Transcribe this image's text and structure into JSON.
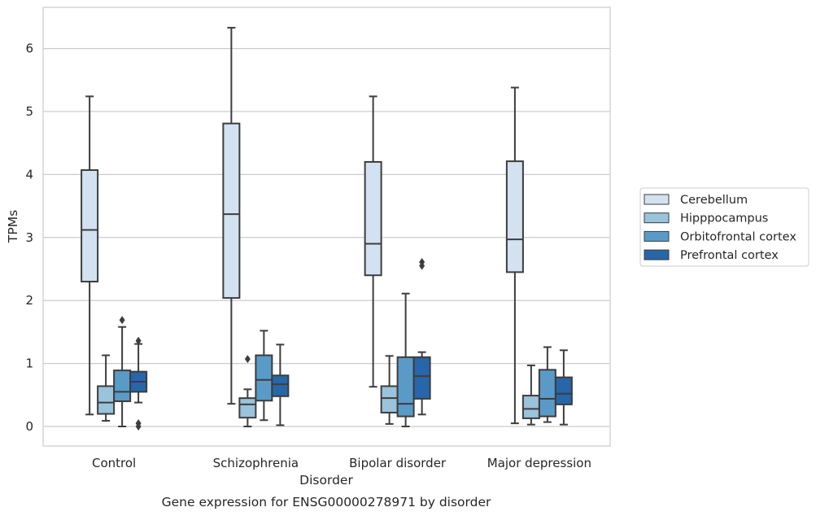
{
  "caption": "Gene expression for ENSG00000278971 by disorder",
  "chart_data": {
    "type": "box",
    "xlabel": "Disorder",
    "ylabel": "TPMs",
    "ylim": [
      -0.3,
      6.65
    ],
    "yticks": [
      0,
      1,
      2,
      3,
      4,
      5,
      6
    ],
    "grid": "horizontal",
    "legend_position": "right",
    "categories": [
      "Control",
      "Schizophrenia",
      "Bipolar disorder",
      "Major depression"
    ],
    "series": [
      {
        "name": "Cerebellum",
        "color": "#d3e2f1",
        "boxes": [
          {
            "min": 0.19,
            "q1": 2.3,
            "median": 3.12,
            "q3": 4.07,
            "max": 5.24,
            "outliers": []
          },
          {
            "min": 0.36,
            "q1": 2.04,
            "median": 3.37,
            "q3": 4.81,
            "max": 6.33,
            "outliers": []
          },
          {
            "min": 0.63,
            "q1": 2.4,
            "median": 2.9,
            "q3": 4.2,
            "max": 5.24,
            "outliers": []
          },
          {
            "min": 0.05,
            "q1": 2.45,
            "median": 2.97,
            "q3": 4.21,
            "max": 5.38,
            "outliers": []
          }
        ]
      },
      {
        "name": "Hipppocampus",
        "color": "#9ac3dc",
        "boxes": [
          {
            "min": 0.09,
            "q1": 0.2,
            "median": 0.38,
            "q3": 0.64,
            "max": 1.13,
            "outliers": []
          },
          {
            "min": 0.0,
            "q1": 0.14,
            "median": 0.35,
            "q3": 0.45,
            "max": 0.59,
            "outliers": [
              1.07
            ]
          },
          {
            "min": 0.04,
            "q1": 0.22,
            "median": 0.45,
            "q3": 0.64,
            "max": 1.12,
            "outliers": []
          },
          {
            "min": 0.03,
            "q1": 0.13,
            "median": 0.28,
            "q3": 0.49,
            "max": 0.97,
            "outliers": []
          }
        ]
      },
      {
        "name": "Orbitofrontal cortex",
        "color": "#5a9ac7",
        "boxes": [
          {
            "min": 0.0,
            "q1": 0.4,
            "median": 0.55,
            "q3": 0.89,
            "max": 1.58,
            "outliers": [
              1.69
            ]
          },
          {
            "min": 0.1,
            "q1": 0.41,
            "median": 0.74,
            "q3": 1.13,
            "max": 1.52,
            "outliers": []
          },
          {
            "min": 0.0,
            "q1": 0.16,
            "median": 0.36,
            "q3": 1.1,
            "max": 2.11,
            "outliers": []
          },
          {
            "min": 0.07,
            "q1": 0.16,
            "median": 0.44,
            "q3": 0.9,
            "max": 1.26,
            "outliers": []
          }
        ]
      },
      {
        "name": "Prefrontal cortex",
        "color": "#2766a8",
        "boxes": [
          {
            "min": 0.38,
            "q1": 0.55,
            "median": 0.71,
            "q3": 0.87,
            "max": 1.31,
            "outliers": [
              1.36,
              0.05,
              0.0
            ]
          },
          {
            "min": 0.02,
            "q1": 0.48,
            "median": 0.67,
            "q3": 0.81,
            "max": 1.3,
            "outliers": []
          },
          {
            "min": 0.19,
            "q1": 0.44,
            "median": 0.8,
            "q3": 1.1,
            "max": 1.18,
            "outliers": [
              2.61,
              2.55
            ]
          },
          {
            "min": 0.03,
            "q1": 0.35,
            "median": 0.52,
            "q3": 0.78,
            "max": 1.21,
            "outliers": []
          }
        ]
      }
    ]
  }
}
